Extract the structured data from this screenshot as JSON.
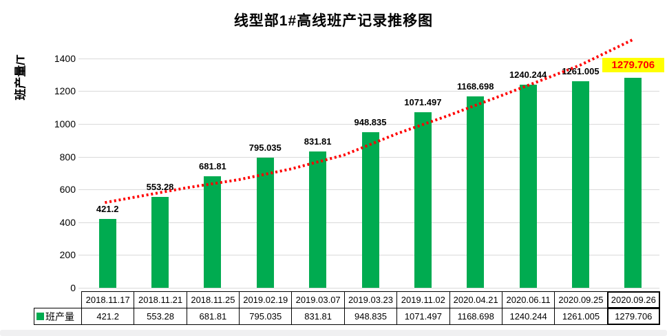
{
  "chart": {
    "title": "线型部1#高线班产记录推移图",
    "y_axis_title": "班产量/T"
  },
  "legend": {
    "label": "班产量"
  },
  "colors": {
    "bar": "#00AB50",
    "trend": "#FF0000",
    "gridline": "#D9D9D9",
    "highlight_bg": "#FFFF00",
    "highlight_text": "#FF0000",
    "bottom_strip": "#F0F0F1"
  },
  "chart_data": {
    "type": "bar",
    "title": "线型部1#高线班产记录推移图",
    "ylabel": "班产量/T",
    "xlabel": "",
    "ylim": [
      0,
      1500
    ],
    "yticks": [
      0,
      200,
      400,
      600,
      800,
      1000,
      1200,
      1400
    ],
    "grid": true,
    "legend_position": "bottom-left-of-data-table",
    "categories": [
      "2018.11.17",
      "2018.11.21",
      "2018.11.25",
      "2019.02.19",
      "2019.03.07",
      "2019.03.23",
      "2019.11.02",
      "2020.04.21",
      "2020.06.11",
      "2020.09.25",
      "2020.09.26"
    ],
    "series": [
      {
        "name": "班产量",
        "values": [
          421.2,
          553.28,
          681.81,
          795.035,
          831.81,
          948.835,
          1071.497,
          1168.698,
          1240.244,
          1261.005,
          1279.706
        ],
        "value_labels": [
          "421.2",
          "553.28",
          "681.81",
          "795.035",
          "831.81",
          "948.835",
          "1071.497",
          "1168.698",
          "1240.244",
          "1261.005",
          "1279.706"
        ]
      }
    ],
    "highlighted_value": "1279.706",
    "trendline": {
      "style": "dotted",
      "color": "#FF0000",
      "points": [
        [
          0.45,
          520
        ],
        [
          2,
          610
        ],
        [
          3,
          660
        ],
        [
          4,
          726
        ],
        [
          5,
          810
        ],
        [
          6,
          940
        ],
        [
          7,
          1053
        ],
        [
          8,
          1174
        ],
        [
          9,
          1297
        ],
        [
          9.5,
          1360
        ],
        [
          10.5,
          1515
        ]
      ]
    },
    "data_table": true
  }
}
